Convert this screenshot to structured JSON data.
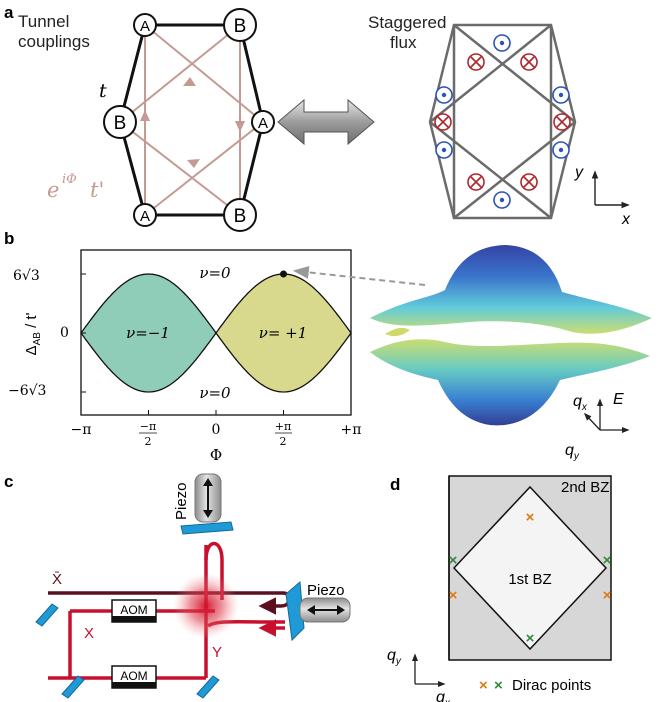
{
  "panels": {
    "a": {
      "label": "a",
      "tunnel_title_line1": "Tunnel",
      "tunnel_title_line2": "couplings",
      "flux_title_line1": "Staggered",
      "flux_title_line2": "flux",
      "t_label": "t",
      "phase_label_base": "e",
      "phase_label_exp": "iΦ",
      "phase_label_tail": "t'",
      "sites": [
        "A",
        "B",
        "B",
        "A",
        "A",
        "B"
      ],
      "axis_y": "y",
      "axis_x": "x",
      "colors": {
        "tunnel_pink": "#c49b93",
        "flux_out": "#2a54b8",
        "flux_in": "#b0262c",
        "frame": "#6b6b6b"
      }
    },
    "b": {
      "label": "b",
      "ylabel": "ΔAB / t'",
      "ylabel_main": "Δ",
      "ylabel_sub": "AB",
      "ylabel_tail": " / t'",
      "xlabel": "Φ",
      "ytick_top": "6√3",
      "ytick_mid": "0",
      "ytick_bot": "−6√3",
      "xticks": [
        "−π",
        "−π/2",
        "0",
        "+π/2",
        "+π"
      ],
      "region_labels": {
        "top": "ν=0",
        "bottom": "ν=0",
        "left": "ν=−1",
        "right": "ν= +1"
      },
      "axis_qx": "qx",
      "axis_qy": "qy",
      "axis_E": "E",
      "colors": {
        "left_region": "#8fcdb9",
        "right_region": "#d8d98c"
      }
    },
    "c": {
      "label": "c",
      "piezo_top": "Piezo",
      "piezo_right": "Piezo",
      "aom_upper": "AOM",
      "aom_lower": "AOM",
      "beam_xbar": "X̄",
      "beam_x": "X",
      "beam_y": "Y",
      "colors": {
        "beam_red": "#c8102e",
        "beam_dark": "#5a1020",
        "mirror": "#1f9ad6"
      }
    },
    "d": {
      "label": "d",
      "bz2": "2nd BZ",
      "bz1": "1st BZ",
      "axis_qy": "qy",
      "axis_qx": "qx",
      "legend_text": "Dirac points",
      "colors": {
        "cross_orange": "#e07a10",
        "cross_green": "#2e8b3a"
      }
    }
  },
  "chart_data": {
    "type": "area",
    "xlabel": "Φ",
    "ylabel": "ΔAB / t'",
    "xlim": [
      -3.1416,
      3.1416
    ],
    "ylim": [
      -10.392,
      10.392
    ],
    "xticks": [
      "−π",
      "−π/2",
      "0",
      "+π/2",
      "+π"
    ],
    "yticks": [
      "−6√3",
      "0",
      "6√3"
    ],
    "boundary": "ΔAB = ±6√3 |sin Φ|",
    "regions": [
      {
        "name": "ν=−1",
        "x_range": [
          -3.1416,
          0
        ]
      },
      {
        "name": "ν= +1",
        "x_range": [
          0,
          3.1416
        ]
      },
      {
        "name": "ν=0",
        "location": "above"
      },
      {
        "name": "ν=0",
        "location": "below"
      }
    ],
    "marked_point": {
      "x": 1.5708,
      "y": 10.392
    }
  }
}
